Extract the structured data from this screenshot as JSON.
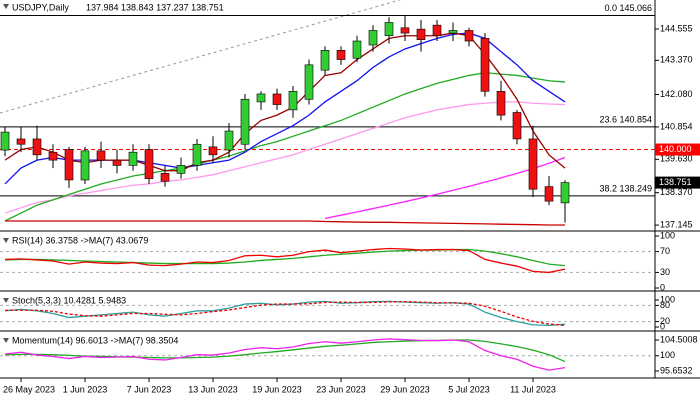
{
  "chart_data": [
    {
      "type": "candlestick",
      "title": "USDJPY,Daily",
      "subtitle": "137.984 138.843 137.237 138.751",
      "categories": [
        null,
        "26 May 2023",
        null,
        null,
        null,
        "1 Jun 2023",
        null,
        null,
        null,
        "7 Jun 2023",
        null,
        null,
        null,
        "13 Jun 2023",
        null,
        null,
        null,
        "19 Jun 2023",
        null,
        null,
        null,
        "23 Jun 2023",
        null,
        null,
        null,
        "29 Jun 2023",
        null,
        null,
        null,
        "5 Jul 2023",
        null,
        null,
        null,
        "11 Jul 2023",
        null,
        null
      ],
      "open": [
        139.98,
        140.4,
        140.4,
        139.9,
        140.0,
        138.85,
        139.95,
        139.6,
        139.4,
        140.0,
        139.1,
        139.1,
        139.4,
        140.1,
        139.98,
        140.2,
        141.8,
        142.1,
        141.5,
        141.9,
        143.0,
        143.75,
        143.45,
        143.95,
        144.3,
        144.6,
        144.55,
        144.7,
        144.4,
        144.5,
        144.2,
        142.2,
        141.4,
        140.4,
        138.6,
        137.984
      ],
      "high": [
        140.85,
        140.85,
        140.9,
        140.2,
        140.1,
        140.1,
        140.3,
        140.0,
        140.2,
        140.2,
        139.4,
        139.7,
        140.4,
        140.5,
        141.0,
        142.1,
        142.2,
        142.3,
        142.4,
        143.4,
        143.9,
        143.9,
        144.3,
        144.7,
        145.0,
        145.066,
        144.9,
        144.9,
        144.8,
        144.6,
        144.4,
        142.6,
        141.5,
        140.9,
        139.0,
        138.843
      ],
      "low": [
        139.75,
        139.9,
        139.6,
        139.3,
        138.55,
        138.7,
        139.3,
        139.1,
        139.2,
        138.7,
        138.6,
        138.9,
        139.2,
        139.5,
        139.7,
        140.0,
        141.5,
        141.5,
        141.2,
        141.7,
        142.8,
        143.2,
        143.3,
        143.7,
        144.0,
        144.1,
        143.7,
        144.1,
        144.1,
        143.9,
        142.0,
        141.1,
        140.2,
        138.2,
        137.9,
        137.237
      ],
      "close": [
        140.66,
        140.2,
        139.8,
        139.6,
        138.85,
        139.95,
        139.6,
        139.4,
        139.9,
        138.9,
        138.8,
        139.4,
        140.2,
        139.8,
        140.7,
        141.9,
        142.1,
        141.7,
        142.2,
        143.2,
        143.75,
        143.4,
        144.1,
        144.5,
        144.8,
        144.4,
        144.15,
        144.3,
        144.5,
        144.1,
        142.2,
        141.3,
        140.4,
        138.5,
        138.05,
        138.751
      ],
      "up_color": "#33cc33",
      "down_color": "#ee1111",
      "series": [
        {
          "color": "#ff99ee",
          "values": [
            137.6,
            137.8,
            138.0,
            138.1,
            138.25,
            138.35,
            138.45,
            138.55,
            138.65,
            138.7,
            138.8,
            138.85,
            138.95,
            139.05,
            139.2,
            139.35,
            139.5,
            139.65,
            139.8,
            140.0,
            140.2,
            140.4,
            140.6,
            140.8,
            141.0,
            141.2,
            141.35,
            141.5,
            141.6,
            141.7,
            141.75,
            141.8,
            141.8,
            141.75,
            141.72,
            141.7
          ]
        },
        {
          "color": "#22aa22",
          "values": [
            137.3,
            137.6,
            137.9,
            138.1,
            138.3,
            138.5,
            138.7,
            138.85,
            139.0,
            139.1,
            139.2,
            139.3,
            139.45,
            139.6,
            139.75,
            139.95,
            140.15,
            140.3,
            140.5,
            140.7,
            140.9,
            141.1,
            141.35,
            141.6,
            141.85,
            142.1,
            142.3,
            142.5,
            142.65,
            142.8,
            142.9,
            142.85,
            142.8,
            142.7,
            142.6,
            142.55
          ]
        },
        {
          "color": "#ff22ff",
          "values": [
            null,
            null,
            null,
            null,
            null,
            null,
            null,
            null,
            null,
            null,
            null,
            null,
            null,
            null,
            null,
            null,
            null,
            null,
            null,
            null,
            137.4,
            137.52,
            137.64,
            137.77,
            137.9,
            138.03,
            138.17,
            138.31,
            138.46,
            138.61,
            138.77,
            138.93,
            139.1,
            139.28,
            139.48,
            139.7
          ]
        },
        {
          "color": "#cc0000",
          "values": [
            137.3,
            137.3,
            137.3,
            137.3,
            137.3,
            137.3,
            137.3,
            137.3,
            137.3,
            137.3,
            137.3,
            137.3,
            137.3,
            137.3,
            137.3,
            137.3,
            137.3,
            137.3,
            137.3,
            137.3,
            137.28,
            137.27,
            137.26,
            137.25,
            137.25,
            137.24,
            137.23,
            137.22,
            137.21,
            137.2,
            137.19,
            137.18,
            137.17,
            137.16,
            137.15,
            137.15
          ]
        },
        {
          "color": "#1111ee",
          "values": [
            138.7,
            139.3,
            139.6,
            139.7,
            139.6,
            139.6,
            139.6,
            139.6,
            139.6,
            139.5,
            139.4,
            139.3,
            139.4,
            139.5,
            139.6,
            139.9,
            140.3,
            140.6,
            140.9,
            141.3,
            141.8,
            142.2,
            142.6,
            143.1,
            143.5,
            143.8,
            144.0,
            144.2,
            144.35,
            144.4,
            144.2,
            143.7,
            143.2,
            142.6,
            142.2,
            141.8
          ]
        },
        {
          "color": "#990000",
          "values": [
            139.6,
            140.0,
            140.1,
            139.9,
            139.6,
            139.5,
            139.6,
            139.6,
            139.6,
            139.4,
            139.2,
            139.2,
            139.5,
            139.6,
            139.9,
            140.6,
            141.1,
            141.3,
            141.6,
            142.2,
            142.8,
            142.9,
            143.4,
            143.8,
            144.2,
            144.3,
            144.3,
            144.3,
            144.4,
            144.3,
            143.6,
            142.8,
            141.9,
            140.7,
            139.8,
            139.3
          ]
        }
      ],
      "ylim": [
        136.96,
        145.65
      ],
      "yticks": [
        144.555,
        {
          "value": 143.37,
          "label": "143.370"
        },
        {
          "value": 142.08,
          "label": "142.080"
        },
        140.854,
        {
          "value": 139.63,
          "label": "139.630"
        },
        {
          "value": 138.37,
          "label": "138.370"
        },
        137.145
      ],
      "levels": [
        {
          "value": 145.066,
          "label": "0.0 145.066"
        },
        {
          "value": 140.854,
          "label": "23.6 140.854"
        },
        {
          "value": 138.249,
          "label": "38.2 138.249"
        }
      ],
      "price_tags": [
        {
          "value": 140,
          "label": "140.000",
          "color": "#ff0000",
          "line": "dashed"
        },
        {
          "value": 138.751,
          "label": "138.751",
          "color": "#000000"
        }
      ]
    },
    {
      "type": "line",
      "title": "RSI(14) 36.3758 ->MA(7) 43.0679",
      "series": [
        {
          "color": "#22aa22",
          "values": [
            54,
            55,
            55,
            54,
            53,
            52,
            51,
            50,
            49,
            48,
            47,
            47,
            47,
            47,
            48,
            50,
            53,
            55,
            57,
            60,
            63,
            65,
            67,
            69,
            71,
            72,
            73,
            73,
            74,
            74,
            71,
            66,
            60,
            53,
            46,
            43.0679
          ]
        },
        {
          "color": "#ee0000",
          "values": [
            55,
            56,
            54,
            52,
            46,
            50,
            48,
            47,
            49,
            44,
            43,
            46,
            50,
            49,
            53,
            62,
            63,
            60,
            63,
            70,
            73,
            68,
            71,
            74,
            76,
            75,
            73,
            74,
            74,
            72,
            55,
            48,
            42,
            32,
            30,
            36.3758
          ]
        }
      ],
      "ylim": [
        -3.8,
        105.8
      ],
      "yticks": [
        100,
        70,
        30,
        0
      ],
      "dashed": [
        70,
        30
      ]
    },
    {
      "type": "line",
      "title": "Stoch(5,3,3) 10.4281 5.9483",
      "series": [
        {
          "color": "#2aa0a0",
          "values": [
            60,
            65,
            60,
            50,
            35,
            40,
            45,
            50,
            55,
            45,
            40,
            50,
            60,
            60,
            70,
            85,
            88,
            82,
            85,
            92,
            95,
            88,
            90,
            94,
            95,
            92,
            90,
            88,
            90,
            85,
            55,
            35,
            20,
            8,
            6,
            10.4281
          ]
        },
        {
          "color": "#ee0000",
          "dash": true,
          "values": [
            62,
            62,
            62,
            58,
            48,
            42,
            40,
            45,
            50,
            50,
            47,
            45,
            50,
            57,
            63,
            72,
            81,
            85,
            85,
            86,
            91,
            92,
            91,
            91,
            93,
            94,
            92,
            90,
            89,
            88,
            77,
            58,
            37,
            21,
            11,
            5.9483
          ]
        }
      ],
      "ylim": [
        -11.1,
        125.9
      ],
      "yticks": [
        100,
        80,
        20,
        0
      ],
      "dashed": [
        80,
        20
      ]
    },
    {
      "type": "line",
      "title": "Momentum(14) 96.6013 ->MA(7) 98.3504",
      "series": [
        {
          "color": "#22aa22",
          "values": [
            100.3,
            100.4,
            100.4,
            100.3,
            100.1,
            99.9,
            99.8,
            99.7,
            99.6,
            99.5,
            99.4,
            99.4,
            99.5,
            99.6,
            99.9,
            100.3,
            100.8,
            101.2,
            101.7,
            102.2,
            102.7,
            103.0,
            103.4,
            103.8,
            104.0,
            104.2,
            104.3,
            104.4,
            104.5,
            104.5,
            104.1,
            103.4,
            102.6,
            101.6,
            100.3,
            98.3504
          ]
        },
        {
          "color": "#ee22ee",
          "values": [
            100.5,
            101,
            100.2,
            99.8,
            99.2,
            99.8,
            99.5,
            99.6,
            99.8,
            99.0,
            98.8,
            99.5,
            100.3,
            100.2,
            100.8,
            101.8,
            102.3,
            102.0,
            102.5,
            103.5,
            104.0,
            103.6,
            104.0,
            104.5,
            104.8,
            104.6,
            104.4,
            104.3,
            104.5,
            104.0,
            101.5,
            100.0,
            99.0,
            97.0,
            95.9,
            96.6013
          ]
        }
      ],
      "ylim": [
        93.65,
        106.5
      ],
      "yticks": [
        104.5008,
        100,
        95.6532
      ],
      "dashed": [
        100
      ]
    }
  ]
}
